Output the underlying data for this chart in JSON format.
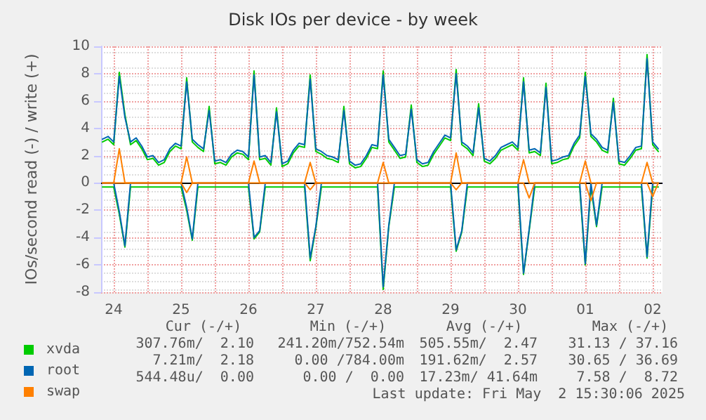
{
  "chart_data": {
    "type": "line",
    "title": "Disk IOs per device - by week",
    "ylabel": "IOs/second read (-) / write (+)",
    "x": [
      "2025-04-24T08:00",
      "2025-04-24T10:00",
      "2025-04-24T12:00",
      "2025-04-24T14:00",
      "2025-04-24T16:00",
      "2025-04-24T18:00",
      "2025-04-24T20:00",
      "2025-04-24T22:00",
      "2025-04-25T00:00",
      "2025-04-25T02:00",
      "2025-04-25T04:00",
      "2025-04-25T06:00",
      "2025-04-25T08:00",
      "2025-04-25T10:00",
      "2025-04-25T12:00",
      "2025-04-25T14:00",
      "2025-04-25T16:00",
      "2025-04-25T18:00",
      "2025-04-25T20:00",
      "2025-04-25T22:00",
      "2025-04-26T00:00",
      "2025-04-26T02:00",
      "2025-04-26T04:00",
      "2025-04-26T06:00",
      "2025-04-26T08:00",
      "2025-04-26T10:00",
      "2025-04-26T12:00",
      "2025-04-26T14:00",
      "2025-04-26T16:00",
      "2025-04-26T18:00",
      "2025-04-26T20:00",
      "2025-04-26T22:00",
      "2025-04-27T00:00",
      "2025-04-27T02:00",
      "2025-04-27T04:00",
      "2025-04-27T06:00",
      "2025-04-27T08:00",
      "2025-04-27T10:00",
      "2025-04-27T12:00",
      "2025-04-27T14:00",
      "2025-04-27T16:00",
      "2025-04-27T18:00",
      "2025-04-27T20:00",
      "2025-04-27T22:00",
      "2025-04-28T00:00",
      "2025-04-28T02:00",
      "2025-04-28T04:00",
      "2025-04-28T06:00",
      "2025-04-28T08:00",
      "2025-04-28T10:00",
      "2025-04-28T12:00",
      "2025-04-28T14:00",
      "2025-04-28T16:00",
      "2025-04-28T18:00",
      "2025-04-28T20:00",
      "2025-04-28T22:00",
      "2025-04-29T00:00",
      "2025-04-29T02:00",
      "2025-04-29T04:00",
      "2025-04-29T06:00",
      "2025-04-29T08:00",
      "2025-04-29T10:00",
      "2025-04-29T12:00",
      "2025-04-29T14:00",
      "2025-04-29T16:00",
      "2025-04-29T18:00",
      "2025-04-29T20:00",
      "2025-04-29T22:00",
      "2025-04-30T00:00",
      "2025-04-30T02:00",
      "2025-04-30T04:00",
      "2025-04-30T06:00",
      "2025-04-30T08:00",
      "2025-04-30T10:00",
      "2025-04-30T12:00",
      "2025-04-30T14:00",
      "2025-04-30T16:00",
      "2025-04-30T18:00",
      "2025-04-30T20:00",
      "2025-04-30T22:00",
      "2025-05-01T00:00",
      "2025-05-01T02:00",
      "2025-05-01T04:00",
      "2025-05-01T06:00",
      "2025-05-01T08:00",
      "2025-05-01T10:00",
      "2025-05-01T12:00",
      "2025-05-01T14:00",
      "2025-05-01T16:00",
      "2025-05-01T18:00",
      "2025-05-01T20:00",
      "2025-05-01T22:00",
      "2025-05-02T00:00",
      "2025-05-02T02:00",
      "2025-05-02T04:00",
      "2025-05-02T06:00",
      "2025-05-02T08:00",
      "2025-05-02T10:00",
      "2025-05-02T12:00",
      "2025-05-02T14:00"
    ],
    "series": [
      {
        "name": "xvda",
        "color": "#00cc00",
        "values": [
          3.0,
          3.2,
          2.8,
          8.1,
          5.0,
          2.8,
          3.1,
          2.5,
          1.7,
          1.8,
          1.3,
          1.5,
          2.3,
          2.7,
          2.5,
          7.7,
          3.0,
          2.6,
          2.3,
          5.6,
          1.4,
          1.5,
          1.3,
          1.9,
          2.2,
          2.1,
          1.7,
          8.2,
          1.7,
          1.8,
          1.3,
          5.5,
          1.2,
          1.4,
          2.2,
          2.7,
          2.6,
          7.9,
          2.3,
          2.1,
          1.8,
          1.7,
          1.5,
          5.6,
          1.4,
          1.1,
          1.2,
          1.8,
          2.6,
          2.5,
          8.2,
          3.0,
          2.4,
          1.8,
          1.9,
          5.7,
          1.5,
          1.2,
          1.3,
          2.1,
          2.7,
          3.3,
          3.1,
          8.3,
          2.8,
          2.5,
          2.0,
          5.8,
          1.6,
          1.4,
          1.8,
          2.4,
          2.6,
          2.8,
          2.4,
          7.7,
          2.2,
          2.3,
          2.0,
          7.3,
          1.4,
          1.5,
          1.7,
          1.8,
          2.7,
          3.3,
          8.1,
          3.4,
          3.0,
          2.4,
          2.2,
          6.2,
          1.4,
          1.3,
          1.8,
          2.4,
          2.5,
          9.4,
          2.8,
          2.3
        ]
      },
      {
        "color": "#00cc00",
        "values": [
          -0.3,
          -0.3,
          -0.3,
          -2.3,
          -4.7,
          -0.3,
          -0.3,
          -0.3,
          -0.3,
          -0.3,
          -0.3,
          -0.3,
          -0.3,
          -0.3,
          -0.3,
          -2.0,
          -4.2,
          -0.3,
          -0.3,
          -0.3,
          -0.3,
          -0.3,
          -0.3,
          -0.3,
          -0.3,
          -0.3,
          -0.3,
          -4.1,
          -3.6,
          -0.3,
          -0.3,
          -0.3,
          -0.3,
          -0.3,
          -0.3,
          -0.3,
          -0.3,
          -5.7,
          -3.3,
          -0.3,
          -0.3,
          -0.3,
          -0.3,
          -0.3,
          -0.3,
          -0.3,
          -0.3,
          -0.3,
          -0.3,
          -0.3,
          -7.8,
          -3.2,
          -0.3,
          -0.3,
          -0.3,
          -0.3,
          -0.3,
          -0.3,
          -0.3,
          -0.3,
          -0.3,
          -0.3,
          -0.3,
          -5.0,
          -3.6,
          -0.3,
          -0.3,
          -0.3,
          -0.3,
          -0.3,
          -0.3,
          -0.3,
          -0.3,
          -0.3,
          -0.3,
          -6.7,
          -3.5,
          -0.3,
          -0.3,
          -0.3,
          -0.3,
          -0.3,
          -0.3,
          -0.3,
          -0.3,
          -0.3,
          -6.0,
          -0.3,
          -3.2,
          -0.3,
          -0.3,
          -0.3,
          -0.3,
          -0.3,
          -0.3,
          -0.3,
          -0.3,
          -5.5,
          -0.3,
          -0.3
        ]
      },
      {
        "name": "root",
        "color": "#0066b3",
        "values": [
          3.2,
          3.4,
          3.0,
          7.8,
          4.8,
          3.0,
          3.3,
          2.7,
          1.9,
          2.0,
          1.5,
          1.7,
          2.5,
          2.9,
          2.7,
          7.4,
          3.2,
          2.8,
          2.5,
          5.3,
          1.6,
          1.7,
          1.5,
          2.1,
          2.4,
          2.3,
          1.9,
          7.9,
          1.9,
          2.0,
          1.5,
          5.2,
          1.4,
          1.6,
          2.4,
          2.9,
          2.8,
          7.6,
          2.5,
          2.3,
          2.0,
          1.9,
          1.7,
          5.3,
          1.6,
          1.3,
          1.4,
          2.0,
          2.8,
          2.7,
          7.9,
          3.2,
          2.6,
          2.0,
          2.1,
          5.4,
          1.7,
          1.4,
          1.5,
          2.3,
          2.9,
          3.5,
          3.3,
          8.0,
          3.0,
          2.7,
          2.2,
          5.5,
          1.8,
          1.6,
          2.0,
          2.6,
          2.8,
          3.0,
          2.6,
          7.4,
          2.4,
          2.5,
          2.2,
          7.0,
          1.6,
          1.7,
          1.9,
          2.0,
          2.9,
          3.5,
          7.8,
          3.6,
          3.2,
          2.6,
          2.4,
          5.9,
          1.6,
          1.5,
          2.0,
          2.6,
          2.7,
          9.1,
          3.0,
          2.5
        ]
      },
      {
        "color": "#0066b3",
        "values": [
          0,
          0,
          0,
          -2.1,
          -4.6,
          0,
          0,
          0,
          0,
          0,
          0,
          0,
          0,
          0,
          0,
          -1.8,
          -4.1,
          0,
          0,
          0,
          0,
          0,
          0,
          0,
          0,
          0,
          0,
          -4.0,
          -3.5,
          0,
          0,
          0,
          0,
          0,
          0,
          0,
          0,
          -5.5,
          -3.2,
          0,
          0,
          0,
          0,
          0,
          0,
          0,
          0,
          0,
          0,
          0,
          -7.6,
          -3.1,
          0,
          0,
          0,
          0,
          0,
          0,
          0,
          0,
          0,
          0,
          0,
          -4.9,
          -3.5,
          0,
          0,
          0,
          0,
          0,
          0,
          0,
          0,
          0,
          0,
          -6.6,
          -3.4,
          0,
          0,
          0,
          0,
          0,
          0,
          0,
          0,
          0,
          -5.9,
          0,
          -3.1,
          0,
          0,
          0,
          0,
          0,
          0,
          0,
          0,
          -5.4,
          0,
          0
        ]
      },
      {
        "name": "swap",
        "color": "#ff8000",
        "values": [
          0,
          0,
          0,
          2.5,
          0,
          0,
          0,
          0,
          0,
          0,
          0,
          0,
          0,
          0,
          0,
          1.9,
          0,
          0,
          0,
          0,
          0,
          0,
          0,
          0,
          0,
          0,
          0,
          1.6,
          0,
          0,
          0,
          0,
          0,
          0,
          0,
          0,
          0,
          1.5,
          0,
          0,
          0,
          0,
          0,
          0,
          0,
          0,
          0,
          0,
          0,
          0,
          1.5,
          0,
          0,
          0,
          0,
          0,
          0,
          0,
          0,
          0,
          0,
          0,
          0,
          2.2,
          0,
          0,
          0,
          0,
          0,
          0,
          0,
          0,
          0,
          0,
          0,
          1.7,
          0,
          0,
          0,
          0,
          0,
          0,
          0,
          0,
          0,
          0,
          1.6,
          0,
          0,
          0,
          0,
          0,
          0,
          0,
          0,
          0,
          0,
          1.5,
          0,
          0
        ]
      },
      {
        "color": "#ff8000",
        "values": [
          0,
          0,
          0,
          0,
          0,
          0,
          0,
          0,
          0,
          0,
          0,
          0,
          0,
          0,
          0,
          -0.7,
          0,
          0,
          0,
          0,
          0,
          0,
          0,
          0,
          0,
          0,
          0,
          0,
          0,
          0,
          0,
          0,
          0,
          0,
          0,
          0,
          0,
          -0.5,
          0,
          0,
          0,
          0,
          0,
          0,
          0,
          0,
          0,
          0,
          0,
          0,
          0,
          0,
          0,
          0,
          0,
          0,
          0,
          0,
          0,
          0,
          0,
          0,
          0,
          -0.5,
          0,
          0,
          0,
          0,
          0,
          0,
          0,
          0,
          0,
          0,
          0,
          0,
          -1.1,
          0,
          0,
          0,
          0,
          0,
          0,
          0,
          0,
          0,
          0,
          -1.3,
          0,
          0,
          0,
          0,
          0,
          0,
          0,
          0,
          0,
          0,
          -1.0,
          0
        ]
      }
    ],
    "xlim": [
      "2025-04-24T07:30",
      "2025-05-02T15:30"
    ],
    "xticks": [
      {
        "value": "2025-04-24T12:00",
        "label": "24"
      },
      {
        "value": "2025-04-25T00:00",
        "label": null
      },
      {
        "value": "2025-04-25T12:00",
        "label": "25"
      },
      {
        "value": "2025-04-26T00:00",
        "label": null
      },
      {
        "value": "2025-04-26T12:00",
        "label": "26"
      },
      {
        "value": "2025-04-27T00:00",
        "label": null
      },
      {
        "value": "2025-04-27T12:00",
        "label": "27"
      },
      {
        "value": "2025-04-28T00:00",
        "label": null
      },
      {
        "value": "2025-04-28T12:00",
        "label": "28"
      },
      {
        "value": "2025-04-29T00:00",
        "label": null
      },
      {
        "value": "2025-04-29T12:00",
        "label": "29"
      },
      {
        "value": "2025-04-30T00:00",
        "label": null
      },
      {
        "value": "2025-04-30T12:00",
        "label": "30"
      },
      {
        "value": "2025-05-01T00:00",
        "label": null
      },
      {
        "value": "2025-05-01T12:00",
        "label": "01"
      },
      {
        "value": "2025-05-02T00:00",
        "label": null
      },
      {
        "value": "2025-05-02T12:00",
        "label": "02"
      }
    ],
    "ylim": [
      -8,
      10
    ],
    "yticks": [
      -8,
      -6,
      -4,
      -2,
      0,
      2,
      4,
      6,
      8,
      10
    ],
    "ref_lines": [
      {
        "axis": "y",
        "value": 0,
        "color": "#000000"
      }
    ],
    "grid": true,
    "legend": "bottom left",
    "marker": "none",
    "line_style": "solid",
    "annotations": [
      "Cur (-/+)",
      "Min (-/+)",
      "Avg (-/+)",
      "Max (-/+)",
      "307.76m/  2.10",
      "241.20m/752.54m",
      "505.55m/  2.47",
      "31.13 / 37.16",
      "7.21m/  2.18",
      "0.00 /784.00m",
      "191.62m/  2.57",
      "30.65 / 36.69",
      "544.48u/  0.00",
      "0.00 /  0.00",
      "17.23m/ 41.64m",
      "7.58 /  8.72",
      "Last update: Fri May  2 15:30:06 2025"
    ]
  }
}
